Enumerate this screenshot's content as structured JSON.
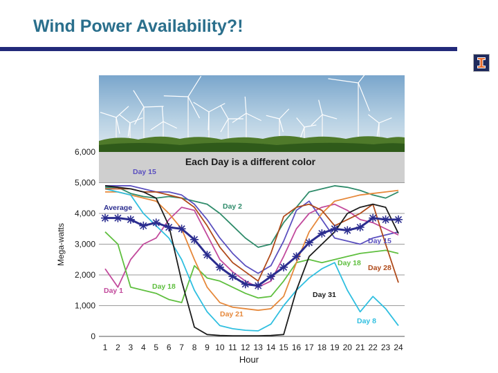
{
  "slide": {
    "title": "Wind Power Availability?!"
  },
  "logo": {
    "icon": "illinois-block-i-icon",
    "color": "#1f2a5c"
  },
  "chart_data": {
    "type": "line",
    "title": "Each Day is a different color",
    "xlabel": "Hour",
    "ylabel": "Mega-watts",
    "xlim": [
      1,
      24
    ],
    "ylim": [
      0,
      6000
    ],
    "grid": true,
    "x": [
      1,
      2,
      3,
      4,
      5,
      6,
      7,
      8,
      9,
      10,
      11,
      12,
      13,
      14,
      15,
      16,
      17,
      18,
      19,
      20,
      21,
      22,
      23,
      24
    ],
    "x_tick_labels": [
      "1",
      "2",
      "3",
      "4",
      "5",
      "6",
      "7",
      "8",
      "9",
      "10",
      "11",
      "12",
      "13",
      "14",
      "15",
      "16",
      "17",
      "18",
      "19",
      "20",
      "21",
      "22",
      "23",
      "24"
    ],
    "y_ticks": [
      0,
      1000,
      2000,
      3000,
      4000,
      5000,
      6000
    ],
    "y_tick_labels": [
      "0",
      "1,000",
      "2,000",
      "3,000",
      "4,000",
      "5,000",
      "6,000"
    ],
    "series": [
      {
        "name": "Day 2",
        "color": "#2e8b6a",
        "values": [
          4850,
          4850,
          4650,
          4550,
          4500,
          4550,
          4500,
          4400,
          4300,
          4000,
          3600,
          3200,
          2900,
          3000,
          3700,
          4200,
          4700,
          4800,
          4900,
          4850,
          4750,
          4600,
          4500,
          4700
        ]
      },
      {
        "name": "Day 15",
        "color": "#5a4fbf",
        "values": [
          4900,
          4900,
          4900,
          4800,
          4700,
          4700,
          4600,
          4300,
          3800,
          3200,
          2700,
          2300,
          2050,
          2300,
          3100,
          4100,
          4400,
          3800,
          3200,
          3100,
          3000,
          3200,
          3300,
          3400
        ]
      },
      {
        "name": "Day 1",
        "color": "#c24a9c",
        "values": [
          2200,
          1600,
          2500,
          3000,
          3200,
          3800,
          4200,
          4100,
          3300,
          2500,
          2100,
          1800,
          1600,
          1800,
          2600,
          3500,
          4000,
          4200,
          4300,
          4100,
          3800,
          3700,
          3500,
          3300
        ]
      },
      {
        "name": "Day 18",
        "color": "#5fbf3f",
        "values": [
          3400,
          3000,
          1600,
          1500,
          1400,
          1200,
          1100,
          2300,
          1900,
          1800,
          1600,
          1400,
          1250,
          1300,
          1800,
          2400,
          2500,
          2400,
          2500,
          2600,
          2700,
          2750,
          2800,
          2700
        ]
      },
      {
        "name": "Day 21",
        "color": "#e6883a",
        "values": [
          4700,
          4700,
          4600,
          4500,
          4400,
          4000,
          3500,
          2500,
          1600,
          1100,
          950,
          900,
          850,
          900,
          1300,
          2400,
          3400,
          4000,
          4400,
          4500,
          4600,
          4650,
          4700,
          4750
        ]
      },
      {
        "name": "Day 8",
        "color": "#2fbfe0",
        "values": [
          4800,
          4700,
          4600,
          4000,
          3600,
          3200,
          2500,
          1500,
          800,
          350,
          250,
          200,
          180,
          400,
          1000,
          1500,
          1900,
          2200,
          2400,
          1500,
          800,
          1300,
          900,
          350
        ]
      },
      {
        "name": "Day 28",
        "color": "#b04a1a",
        "values": [
          4800,
          4800,
          4800,
          4700,
          4700,
          4600,
          4500,
          4200,
          3600,
          2900,
          2400,
          2100,
          1800,
          2700,
          3900,
          4200,
          4300,
          4100,
          3600,
          3800,
          4000,
          4300,
          3000,
          1750
        ]
      },
      {
        "name": "Day 31",
        "color": "#1c1c1c",
        "values": [
          4900,
          4850,
          4800,
          4700,
          4500,
          3600,
          1800,
          300,
          60,
          30,
          20,
          20,
          20,
          30,
          60,
          1500,
          2600,
          3000,
          3400,
          4000,
          4200,
          4300,
          4200,
          3350
        ]
      },
      {
        "name": "Average",
        "color": "#2b2d8f",
        "marker": "asterisk",
        "values": [
          3850,
          3850,
          3800,
          3600,
          3700,
          3550,
          3500,
          3150,
          2650,
          2250,
          1950,
          1700,
          1650,
          1950,
          2250,
          2600,
          3050,
          3350,
          3500,
          3450,
          3550,
          3850,
          3800,
          3800
        ]
      }
    ],
    "background_photo": "wind-turbines-photo"
  }
}
